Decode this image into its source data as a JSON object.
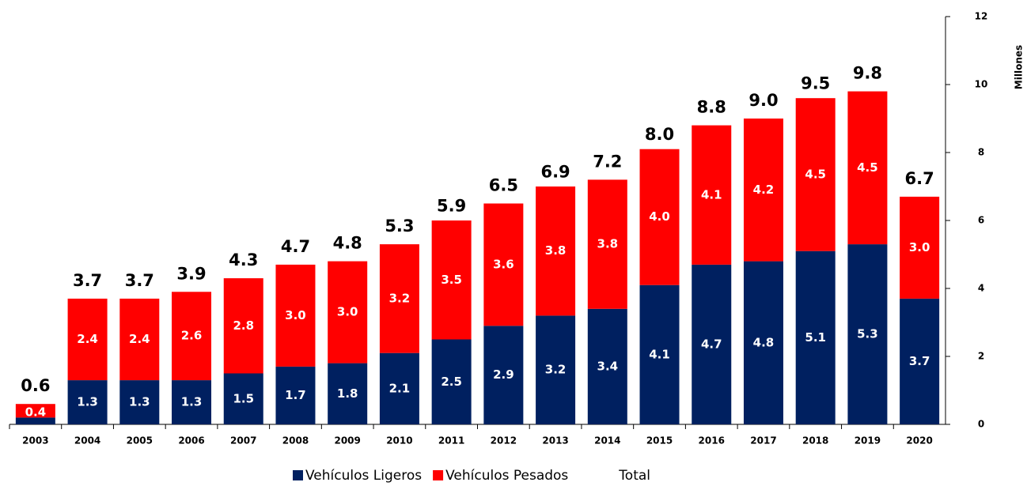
{
  "chart_data": {
    "type": "stacked_bar",
    "categories": [
      "2003",
      "2004",
      "2005",
      "2006",
      "2007",
      "2008",
      "2009",
      "2010",
      "2011",
      "2012",
      "2013",
      "2014",
      "2015",
      "2016",
      "2017",
      "2018",
      "2019",
      "2020"
    ],
    "series": [
      {
        "name": "Vehículos Ligeros",
        "color": "#002060",
        "values": [
          0.2,
          1.3,
          1.3,
          1.3,
          1.5,
          1.7,
          1.8,
          2.1,
          2.5,
          2.9,
          3.2,
          3.4,
          4.1,
          4.7,
          4.8,
          5.1,
          5.3,
          3.7
        ],
        "value_labels": [
          null,
          "1.3",
          "1.3",
          "1.3",
          "1.5",
          "1.7",
          "1.8",
          "2.1",
          "2.5",
          "2.9",
          "3.2",
          "3.4",
          "4.1",
          "4.7",
          "4.8",
          "5.1",
          "5.3",
          "3.7"
        ]
      },
      {
        "name": "Vehículos Pesados",
        "color": "#ff0000",
        "values": [
          0.4,
          2.4,
          2.4,
          2.6,
          2.8,
          3.0,
          3.0,
          3.2,
          3.5,
          3.6,
          3.8,
          3.8,
          4.0,
          4.1,
          4.2,
          4.5,
          4.5,
          3.0
        ],
        "value_labels": [
          "0.4",
          "2.4",
          "2.4",
          "2.6",
          "2.8",
          "3.0",
          "3.0",
          "3.2",
          "3.5",
          "3.6",
          "3.8",
          "3.8",
          "4.0",
          "4.1",
          "4.2",
          "4.5",
          "4.5",
          "3.0"
        ]
      },
      {
        "name": "Total",
        "values": [
          0.6,
          3.7,
          3.7,
          3.9,
          4.3,
          4.7,
          4.8,
          5.3,
          5.9,
          6.5,
          6.9,
          7.2,
          8.0,
          8.8,
          9.0,
          9.5,
          9.8,
          6.7
        ],
        "value_labels": [
          "0.6",
          "3.7",
          "3.7",
          "3.9",
          "4.3",
          "4.7",
          "4.8",
          "5.3",
          "5.9",
          "6.5",
          "6.9",
          "7.2",
          "8.0",
          "8.8",
          "9.0",
          "9.5",
          "9.8",
          "6.7"
        ]
      }
    ],
    "y_label": "Millones",
    "ylim": [
      0,
      12
    ],
    "yticks": [
      0,
      2,
      4,
      6,
      8,
      10,
      12
    ],
    "y_axis_side": "right",
    "legend": "bottom"
  }
}
